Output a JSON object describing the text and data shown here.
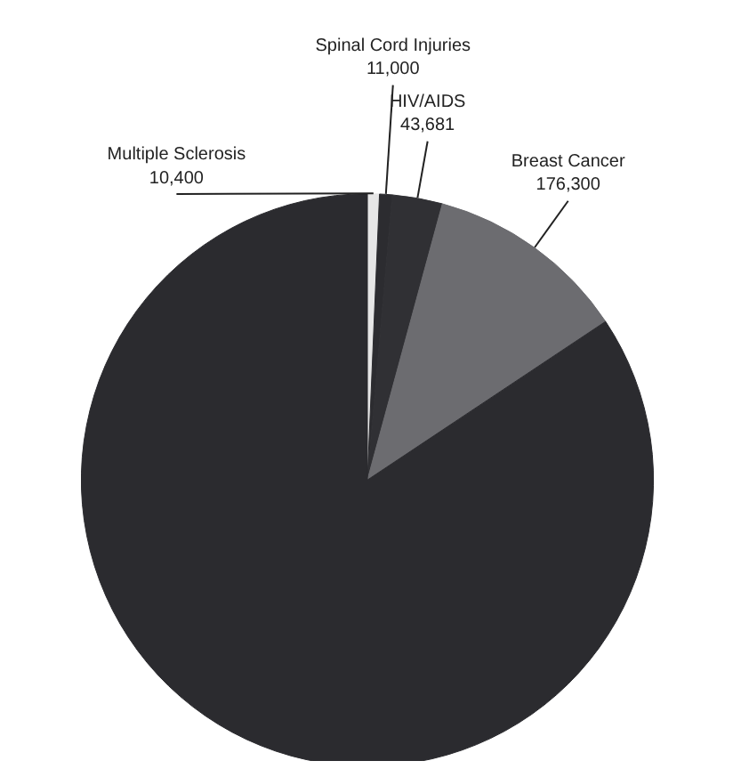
{
  "chart_data": {
    "type": "pie",
    "categories": [
      "Multiple Sclerosis",
      "Spinal Cord Injuries",
      "HIV/AIDS",
      "Breast Cancer",
      null
    ],
    "values": [
      10400,
      11000,
      43681,
      176300,
      1300000
    ],
    "value_labels": [
      "10,400",
      "11,000",
      "43,681",
      "176,300",
      null
    ],
    "colors": [
      "#e6e6e6",
      "#2c2c30",
      "#303034",
      "#6c6c70",
      "#2b2b2f"
    ]
  }
}
